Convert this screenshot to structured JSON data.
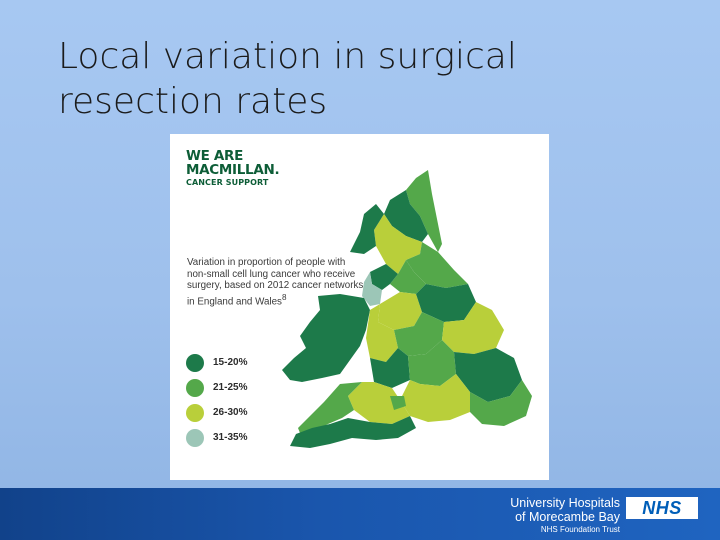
{
  "slide": {
    "title": "Local variation in surgical resection rates"
  },
  "figure": {
    "logo_line1": "WE ARE",
    "logo_line2": "MACMILLAN.",
    "logo_line3": "CANCER SUPPORT",
    "caption": "Variation in proportion of people with non-small cell lung cancer who receive surgery, based on 2012 cancer networks in England and Wales",
    "caption_ref": "8",
    "legend": [
      {
        "label": "15-20%",
        "color": "#1d7a4a"
      },
      {
        "label": "21-25%",
        "color": "#54a84a"
      },
      {
        "label": "26-30%",
        "color": "#b9cf3a"
      },
      {
        "label": "31-35%",
        "color": "#9cc6b7"
      }
    ]
  },
  "footer": {
    "org_line1": "University Hospitals",
    "org_line2": "of Morecambe Bay",
    "org_line3": "NHS Foundation Trust",
    "nhs_logo": "NHS"
  }
}
